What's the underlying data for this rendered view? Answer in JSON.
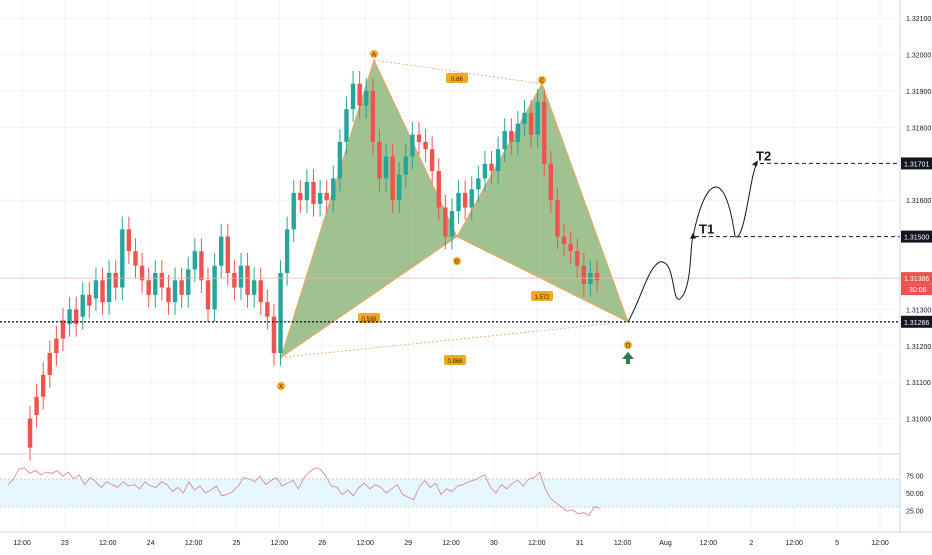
{
  "chart_data": {
    "type": "candlestick",
    "price_axis": {
      "ticks": [
        "1.32100",
        "1.32000",
        "1.31900",
        "1.31800",
        "1.31600",
        "1.31300",
        "1.31200",
        "1.31100",
        "1.31000"
      ],
      "tick_values": [
        1.321,
        1.32,
        1.319,
        1.318,
        1.316,
        1.313,
        1.312,
        1.311,
        1.31
      ],
      "range": [
        1.309,
        1.3215
      ]
    },
    "time_axis": {
      "labels": [
        "12:00",
        "23",
        "12:00",
        "24",
        "12:00",
        "25",
        "12:00",
        "26",
        "12:00",
        "29",
        "12:00",
        "30",
        "12:00",
        "31",
        "12:00",
        "Aug",
        "12:00",
        "2",
        "12:00",
        "5",
        "12:00"
      ]
    },
    "price_labels": [
      {
        "value": 1.31701,
        "text": "1.31701",
        "color": "#131722"
      },
      {
        "value": 1.315,
        "text": "1.31500",
        "color": "#131722"
      },
      {
        "value": 1.31386,
        "text": "1.31386",
        "color": "#ef5350"
      },
      {
        "value": 1.31266,
        "text": "1.31266",
        "color": "#131722"
      }
    ],
    "countdown": "30:06",
    "candles": [
      [
        1.31,
        1.3092
      ],
      [
        1.3106,
        1.3101
      ],
      [
        1.3112,
        1.3106
      ],
      [
        1.3118,
        1.3112
      ],
      [
        1.3122,
        1.3118
      ],
      [
        1.3127,
        1.3122
      ],
      [
        1.3126,
        1.313
      ],
      [
        1.313,
        1.3126
      ],
      [
        1.3128,
        1.3134
      ],
      [
        1.3134,
        1.3131
      ],
      [
        1.3133,
        1.3138
      ],
      [
        1.3138,
        1.3132
      ],
      [
        1.3132,
        1.314
      ],
      [
        1.314,
        1.3136
      ],
      [
        1.3136,
        1.3152
      ],
      [
        1.3152,
        1.3146
      ],
      [
        1.3146,
        1.3142
      ],
      [
        1.3142,
        1.3138
      ],
      [
        1.3138,
        1.3134
      ],
      [
        1.3134,
        1.314
      ],
      [
        1.314,
        1.3136
      ],
      [
        1.3136,
        1.3132
      ],
      [
        1.3132,
        1.3138
      ],
      [
        1.3138,
        1.3134
      ],
      [
        1.3134,
        1.3141
      ],
      [
        1.3141,
        1.3146
      ],
      [
        1.3146,
        1.3138
      ],
      [
        1.3138,
        1.313
      ],
      [
        1.313,
        1.3142
      ],
      [
        1.3142,
        1.315
      ],
      [
        1.315,
        1.314
      ],
      [
        1.314,
        1.3136
      ],
      [
        1.3136,
        1.3142
      ],
      [
        1.3142,
        1.3134
      ],
      [
        1.3134,
        1.3138
      ],
      [
        1.3138,
        1.3132
      ],
      [
        1.3132,
        1.3128
      ],
      [
        1.3128,
        1.3118
      ],
      [
        1.3118,
        1.314
      ],
      [
        1.314,
        1.3152
      ],
      [
        1.3152,
        1.3162
      ],
      [
        1.3162,
        1.316
      ],
      [
        1.316,
        1.3165
      ],
      [
        1.3165,
        1.3159
      ],
      [
        1.3159,
        1.3162
      ],
      [
        1.3162,
        1.316
      ],
      [
        1.316,
        1.3166
      ],
      [
        1.3166,
        1.3176
      ],
      [
        1.3176,
        1.3185
      ],
      [
        1.3185,
        1.3192
      ],
      [
        1.3192,
        1.3186
      ],
      [
        1.3186,
        1.319
      ],
      [
        1.319,
        1.3176
      ],
      [
        1.3176,
        1.3166
      ],
      [
        1.3166,
        1.3172
      ],
      [
        1.3172,
        1.316
      ],
      [
        1.316,
        1.3167
      ],
      [
        1.3167,
        1.3172
      ],
      [
        1.3172,
        1.3178
      ],
      [
        1.3178,
        1.3176
      ],
      [
        1.3176,
        1.3174
      ],
      [
        1.3174,
        1.3168
      ],
      [
        1.3168,
        1.3158
      ],
      [
        1.3158,
        1.315
      ],
      [
        1.315,
        1.3157
      ],
      [
        1.3157,
        1.3162
      ],
      [
        1.3162,
        1.3158
      ],
      [
        1.3158,
        1.3163
      ],
      [
        1.3163,
        1.3166
      ],
      [
        1.3166,
        1.317
      ],
      [
        1.317,
        1.3168
      ],
      [
        1.3168,
        1.3174
      ],
      [
        1.3174,
        1.3179
      ],
      [
        1.3179,
        1.3176
      ],
      [
        1.3176,
        1.3181
      ],
      [
        1.3181,
        1.3184
      ],
      [
        1.3184,
        1.3178
      ],
      [
        1.3178,
        1.3187
      ],
      [
        1.3187,
        1.317
      ],
      [
        1.317,
        1.316
      ],
      [
        1.316,
        1.315
      ],
      [
        1.315,
        1.3148
      ],
      [
        1.3148,
        1.3146
      ],
      [
        1.3146,
        1.3142
      ],
      [
        1.3142,
        1.3137
      ],
      [
        1.3137,
        1.314
      ],
      [
        1.314,
        1.3138
      ]
    ],
    "harmonic_pattern": {
      "points": [
        {
          "label": "X",
          "value": 1.31168
        },
        {
          "label": "A",
          "value": 1.31985
        },
        {
          "label": "B",
          "value": 1.315
        },
        {
          "label": "C",
          "value": 1.3192
        },
        {
          "label": "D",
          "value": 1.31266
        }
      ],
      "ratios": [
        "0.599",
        "0.86",
        "1.572",
        "0.868"
      ],
      "fill": "#7fae6b",
      "edge": "#f3a35c"
    },
    "targets": [
      {
        "label": "T1",
        "value": 1.315
      },
      {
        "label": "T2",
        "value": 1.31701
      }
    ],
    "rsi": {
      "ticks": [
        "75.00",
        "50.00",
        "25.00"
      ],
      "tick_values": [
        75,
        50,
        25
      ],
      "band": [
        30,
        70
      ],
      "values": [
        62,
        70,
        84,
        86,
        78,
        82,
        76,
        80,
        78,
        82,
        74,
        80,
        70,
        76,
        62,
        72,
        66,
        58,
        66,
        62,
        58,
        66,
        60,
        62,
        56,
        66,
        60,
        58,
        66,
        62,
        52,
        58,
        50,
        66,
        54,
        60,
        50,
        54,
        60,
        46,
        48,
        52,
        60,
        72,
        70,
        66,
        74,
        62,
        68,
        72,
        60,
        64,
        68,
        56,
        72,
        80,
        86,
        84,
        74,
        60,
        58,
        48,
        54,
        46,
        58,
        64,
        56,
        62,
        58,
        50,
        56,
        62,
        48,
        44,
        40,
        58,
        68,
        58,
        64,
        48,
        56,
        52,
        60,
        62,
        66,
        68,
        72,
        76,
        58,
        50,
        62,
        56,
        64,
        68,
        60,
        70,
        72,
        80,
        56,
        42,
        36,
        30,
        24,
        26,
        20,
        22,
        18,
        30,
        28
      ]
    },
    "colors": {
      "up": "#26a69a",
      "down": "#ef5350",
      "rsi_line": "#d97c9c",
      "rsi_band": "#e6f7fd",
      "grid": "#f0f3fa"
    }
  }
}
